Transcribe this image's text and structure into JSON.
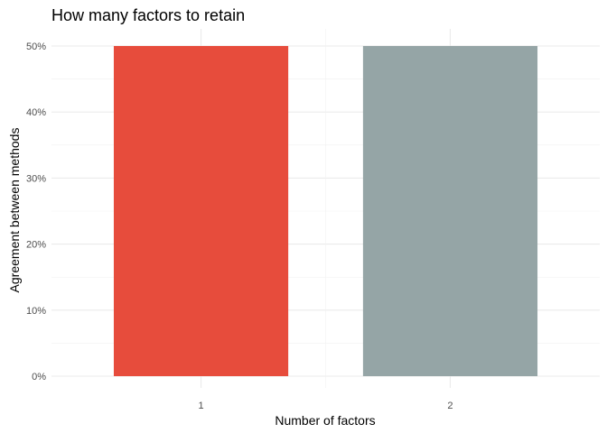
{
  "chart_data": {
    "type": "bar",
    "title": "How many factors to retain",
    "xlabel": "Number of factors",
    "ylabel": "Agreement between methods",
    "categories": [
      "1",
      "2"
    ],
    "values": [
      50,
      50
    ],
    "colors": [
      "#e74c3c",
      "#95a5a6"
    ],
    "ylim": [
      0,
      50
    ],
    "yticks": [
      0,
      10,
      20,
      30,
      40,
      50
    ],
    "ytick_labels": [
      "0%",
      "10%",
      "20%",
      "30%",
      "40%",
      "50%"
    ],
    "grid": true,
    "legend": "none"
  }
}
